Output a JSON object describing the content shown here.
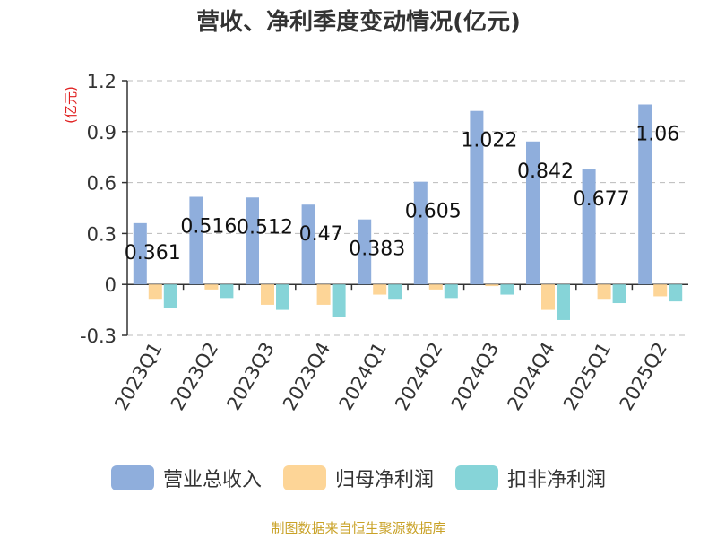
{
  "chart_data": {
    "type": "bar",
    "title": "营收、净利季度变动情况(亿元)",
    "ylabel": "(亿元)",
    "categories": [
      "2023Q1",
      "2023Q2",
      "2023Q3",
      "2023Q4",
      "2024Q1",
      "2024Q2",
      "2024Q3",
      "2024Q4",
      "2025Q1",
      "2025Q2"
    ],
    "series": [
      {
        "name": "营业总收入",
        "color": "#8faedc",
        "values": [
          0.361,
          0.516,
          0.512,
          0.47,
          0.383,
          0.605,
          1.022,
          0.842,
          0.677,
          1.06
        ],
        "labels": [
          "0.361",
          "0.516",
          "0.512",
          "0.47",
          "0.383",
          "0.605",
          "1.022",
          "0.842",
          "0.677",
          "1.06"
        ]
      },
      {
        "name": "归母净利润",
        "color": "#fdd597",
        "values": [
          -0.09,
          -0.03,
          -0.12,
          -0.12,
          -0.06,
          -0.03,
          -0.01,
          -0.15,
          -0.09,
          -0.07
        ]
      },
      {
        "name": "扣非净利润",
        "color": "#86d4d8",
        "values": [
          -0.14,
          -0.08,
          -0.15,
          -0.19,
          -0.09,
          -0.08,
          -0.06,
          -0.21,
          -0.11,
          -0.1
        ]
      }
    ],
    "yticks": [
      "1.2",
      "0.9",
      "0.6",
      "0.3",
      "0",
      "-0.3"
    ],
    "ylim": [
      -0.3,
      1.2
    ],
    "grid": true,
    "legend_position": "bottom"
  },
  "source_text": "制图数据来自恒生聚源数据库"
}
